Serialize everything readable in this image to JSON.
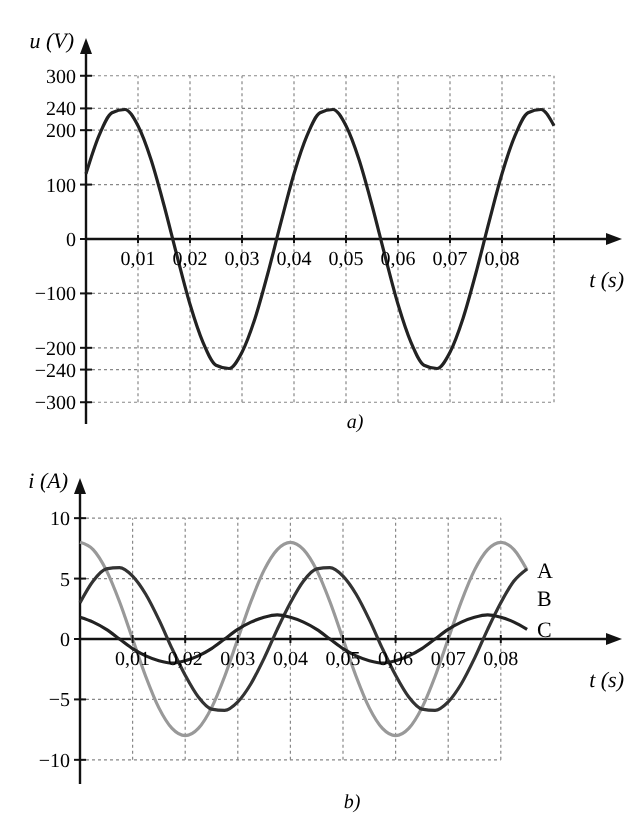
{
  "chart_data": [
    {
      "type": "line",
      "xlabel": "t (s)",
      "ylabel": "u (V)",
      "annotations": [
        "a)"
      ],
      "xlim": [
        0,
        0.1
      ],
      "ylim": [
        -340,
        340
      ],
      "xticks": [
        {
          "value": 0.01,
          "label": "0,01"
        },
        {
          "value": 0.02,
          "label": "0,02"
        },
        {
          "value": 0.03,
          "label": "0,03"
        },
        {
          "value": 0.04,
          "label": "0,04"
        },
        {
          "value": 0.05,
          "label": "0,05"
        },
        {
          "value": 0.06,
          "label": "0,06"
        },
        {
          "value": 0.07,
          "label": "0,07"
        },
        {
          "value": 0.08,
          "label": "0,08"
        },
        {
          "value": 0.09,
          "label": null
        }
      ],
      "yticks": [
        300,
        240,
        200,
        100,
        0,
        {
          "value": -100,
          "label": "−100"
        },
        {
          "value": -200,
          "label": "−200"
        },
        {
          "value": -240,
          "label": "−240"
        },
        {
          "value": -300,
          "label": "−300"
        }
      ],
      "grid": true,
      "line_style": "solid",
      "x": [
        0,
        0.0025,
        0.005,
        0.0075,
        0.01,
        0.0125,
        0.015,
        0.0175,
        0.02,
        0.0225,
        0.025,
        0.0275,
        0.03,
        0.0325,
        0.035,
        0.0375,
        0.04,
        0.0425,
        0.045,
        0.0475,
        0.05,
        0.0525,
        0.055,
        0.0575,
        0.06,
        0.0625,
        0.065,
        0.0675,
        0.07,
        0.0725,
        0.075,
        0.0775,
        0.08,
        0.0825,
        0.085,
        0.0875,
        0.09
      ],
      "series": [
        {
          "color": "#222222",
          "values": [
            120,
            190,
            232,
            238,
            208,
            146,
            62,
            -31,
            -120,
            -190,
            -232,
            -238,
            -208,
            -146,
            -62,
            31,
            120,
            190,
            232,
            238,
            208,
            146,
            62,
            -31,
            -120,
            -190,
            -232,
            -238,
            -208,
            -146,
            -62,
            31,
            120,
            190,
            232,
            238,
            208
          ]
        }
      ]
    },
    {
      "type": "line",
      "xlabel": "t (s)",
      "ylabel": "i (A)",
      "annotations": [
        "b)"
      ],
      "xlim": [
        0,
        0.1
      ],
      "ylim": [
        -12,
        12
      ],
      "xticks": [
        {
          "value": 0.01,
          "label": "0,01"
        },
        {
          "value": 0.02,
          "label": "0,02"
        },
        {
          "value": 0.03,
          "label": "0,03"
        },
        {
          "value": 0.04,
          "label": "0,04"
        },
        {
          "value": 0.05,
          "label": "0,05"
        },
        {
          "value": 0.06,
          "label": "0,06"
        },
        {
          "value": 0.07,
          "label": "0,07"
        },
        {
          "value": 0.08,
          "label": "0,08"
        }
      ],
      "yticks": [
        10,
        5,
        0,
        {
          "value": -5,
          "label": "−5"
        },
        {
          "value": -10,
          "label": "−10"
        }
      ],
      "grid": true,
      "line_style": "solid",
      "x": [
        0,
        0.0025,
        0.005,
        0.0075,
        0.01,
        0.0125,
        0.015,
        0.0175,
        0.02,
        0.0225,
        0.025,
        0.0275,
        0.03,
        0.0325,
        0.035,
        0.0375,
        0.04,
        0.0425,
        0.045,
        0.0475,
        0.05,
        0.0525,
        0.055,
        0.0575,
        0.06,
        0.0625,
        0.065,
        0.0675,
        0.07,
        0.0725,
        0.075,
        0.0775,
        0.08,
        0.0825,
        0.085
      ],
      "series": [
        {
          "name": "A",
          "color": "#999999",
          "values": [
            8,
            7.4,
            5.7,
            3.1,
            0,
            -3.1,
            -5.7,
            -7.4,
            -8,
            -7.4,
            -5.7,
            -3.1,
            0,
            3.1,
            5.7,
            7.4,
            8,
            7.4,
            5.7,
            3.1,
            0,
            -3.1,
            -5.7,
            -7.4,
            -8,
            -7.4,
            -5.7,
            -3.1,
            0,
            3.1,
            5.7,
            7.4,
            8,
            7.4,
            5.7
          ]
        },
        {
          "name": "B",
          "color": "#333333",
          "values": [
            3,
            4.8,
            5.8,
            5.9,
            5.2,
            3.7,
            1.6,
            -0.8,
            -3,
            -4.8,
            -5.8,
            -5.9,
            -5.2,
            -3.7,
            -1.6,
            0.8,
            3,
            4.8,
            5.8,
            5.9,
            5.2,
            3.7,
            1.6,
            -0.8,
            -3,
            -4.8,
            -5.8,
            -5.9,
            -5.2,
            -3.7,
            -1.6,
            0.8,
            3,
            4.8,
            5.8
          ]
        },
        {
          "name": "C",
          "color": "#222222",
          "values": [
            1.8,
            1.4,
            0.8,
            0,
            -0.8,
            -1.4,
            -1.8,
            -2,
            -1.8,
            -1.4,
            -0.8,
            0,
            0.8,
            1.4,
            1.8,
            2,
            1.8,
            1.4,
            0.8,
            0,
            -0.8,
            -1.4,
            -1.8,
            -2,
            -1.8,
            -1.4,
            -0.8,
            0,
            0.8,
            1.4,
            1.8,
            2,
            1.8,
            1.4,
            0.8
          ]
        }
      ]
    }
  ]
}
